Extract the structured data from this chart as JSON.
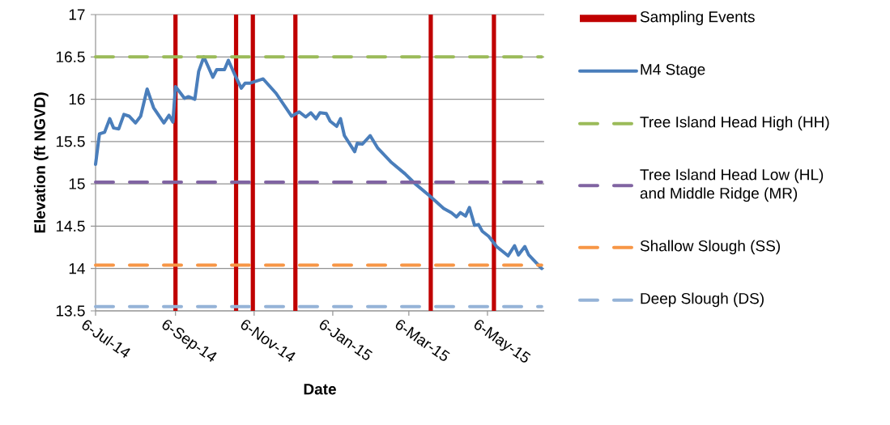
{
  "chart_data": {
    "type": "line",
    "xlabel": "Date",
    "ylabel": "Elevation (ft NGVD)",
    "xlim": [
      "2014-07-06",
      "2015-06-19"
    ],
    "ylim": [
      13.5,
      17
    ],
    "yticks": [
      13.5,
      14,
      14.5,
      15,
      15.5,
      16,
      16.5,
      17
    ],
    "xticks": [
      {
        "value": "2014-07-06",
        "label": "6-Jul-14"
      },
      {
        "value": "2014-09-06",
        "label": "6-Sep-14"
      },
      {
        "value": "2014-11-06",
        "label": "6-Nov-14"
      },
      {
        "value": "2015-01-06",
        "label": "6-Jan-15"
      },
      {
        "value": "2015-03-06",
        "label": "6-Mar-15"
      },
      {
        "value": "2015-05-06",
        "label": "6-May-15"
      }
    ],
    "grid": "y",
    "legend": "right",
    "series": [
      {
        "name": "Sampling Events",
        "type": "bar",
        "color": "#c00000",
        "x": [
          "2014-09-06",
          "2014-10-23",
          "2014-11-05",
          "2014-12-08",
          "2015-03-23",
          "2015-05-11"
        ],
        "base": [
          13.5,
          13.5,
          13.5,
          13.5,
          13.5,
          13.5
        ],
        "values": [
          3.5,
          3.5,
          3.5,
          3.5,
          3.5,
          3.5
        ]
      },
      {
        "name": "M4 Stage",
        "color": "#4a7ebb",
        "line_style": "solid",
        "x": [
          "2014-07-06",
          "2014-07-09",
          "2014-07-13",
          "2014-07-17",
          "2014-07-20",
          "2014-07-24",
          "2014-07-28",
          "2014-08-01",
          "2014-08-06",
          "2014-08-10",
          "2014-08-15",
          "2014-08-20",
          "2014-08-28",
          "2014-09-01",
          "2014-09-04",
          "2014-09-06",
          "2014-09-13",
          "2014-09-16",
          "2014-09-21",
          "2014-09-24",
          "2014-09-28",
          "2014-10-05",
          "2014-10-08",
          "2014-10-14",
          "2014-10-17",
          "2014-10-22",
          "2014-10-27",
          "2014-10-30",
          "2014-11-03",
          "2014-11-13",
          "2014-11-23",
          "2014-12-05",
          "2014-12-11",
          "2014-12-16",
          "2014-12-20",
          "2014-12-24",
          "2014-12-27",
          "2015-01-01",
          "2015-01-04",
          "2015-01-09",
          "2015-01-12",
          "2015-01-15",
          "2015-01-23",
          "2015-01-25",
          "2015-01-29",
          "2015-02-04",
          "2015-02-10",
          "2015-02-20",
          "2015-03-03",
          "2015-03-11",
          "2015-03-22",
          "2015-04-02",
          "2015-04-08",
          "2015-04-12",
          "2015-04-15",
          "2015-04-19",
          "2015-04-22",
          "2015-04-26",
          "2015-04-29",
          "2015-05-02",
          "2015-05-07",
          "2015-05-13",
          "2015-05-22",
          "2015-05-27",
          "2015-05-30",
          "2015-06-04",
          "2015-06-07",
          "2015-06-17"
        ],
        "values": [
          15.23,
          15.59,
          15.61,
          15.77,
          15.66,
          15.65,
          15.82,
          15.8,
          15.72,
          15.8,
          16.12,
          15.9,
          15.72,
          15.81,
          15.73,
          16.15,
          16.01,
          16.03,
          16.0,
          16.33,
          16.5,
          16.26,
          16.35,
          16.35,
          16.46,
          16.29,
          16.13,
          16.19,
          16.19,
          16.24,
          16.07,
          15.8,
          15.85,
          15.79,
          15.84,
          15.77,
          15.84,
          15.83,
          15.74,
          15.68,
          15.77,
          15.57,
          15.38,
          15.48,
          15.47,
          15.57,
          15.42,
          15.26,
          15.12,
          15.0,
          14.86,
          14.71,
          14.66,
          14.61,
          14.66,
          14.62,
          14.72,
          14.51,
          14.52,
          14.44,
          14.38,
          14.26,
          14.15,
          14.27,
          14.16,
          14.26,
          14.16,
          14.0
        ]
      },
      {
        "name": "Tree Island Head High (HH)",
        "color": "#9bbb59",
        "line_style": "dashed",
        "x": [
          "2014-07-06",
          "2015-06-17"
        ],
        "values": [
          16.5,
          16.5
        ]
      },
      {
        "name": "Tree Island Head Low (HL) and Middle Ridge (MR)",
        "color": "#8064a2",
        "line_style": "dashed",
        "x": [
          "2014-07-06",
          "2015-06-17"
        ],
        "values": [
          15.02,
          15.02
        ]
      },
      {
        "name": "Shallow Slough (SS)",
        "color": "#f79646",
        "line_style": "dashed",
        "x": [
          "2014-07-06",
          "2015-06-17"
        ],
        "values": [
          14.04,
          14.04
        ]
      },
      {
        "name": "Deep Slough (DS)",
        "color": "#95b3d7",
        "line_style": "dashed",
        "x": [
          "2014-07-06",
          "2015-06-17"
        ],
        "values": [
          13.55,
          13.55
        ]
      }
    ]
  }
}
